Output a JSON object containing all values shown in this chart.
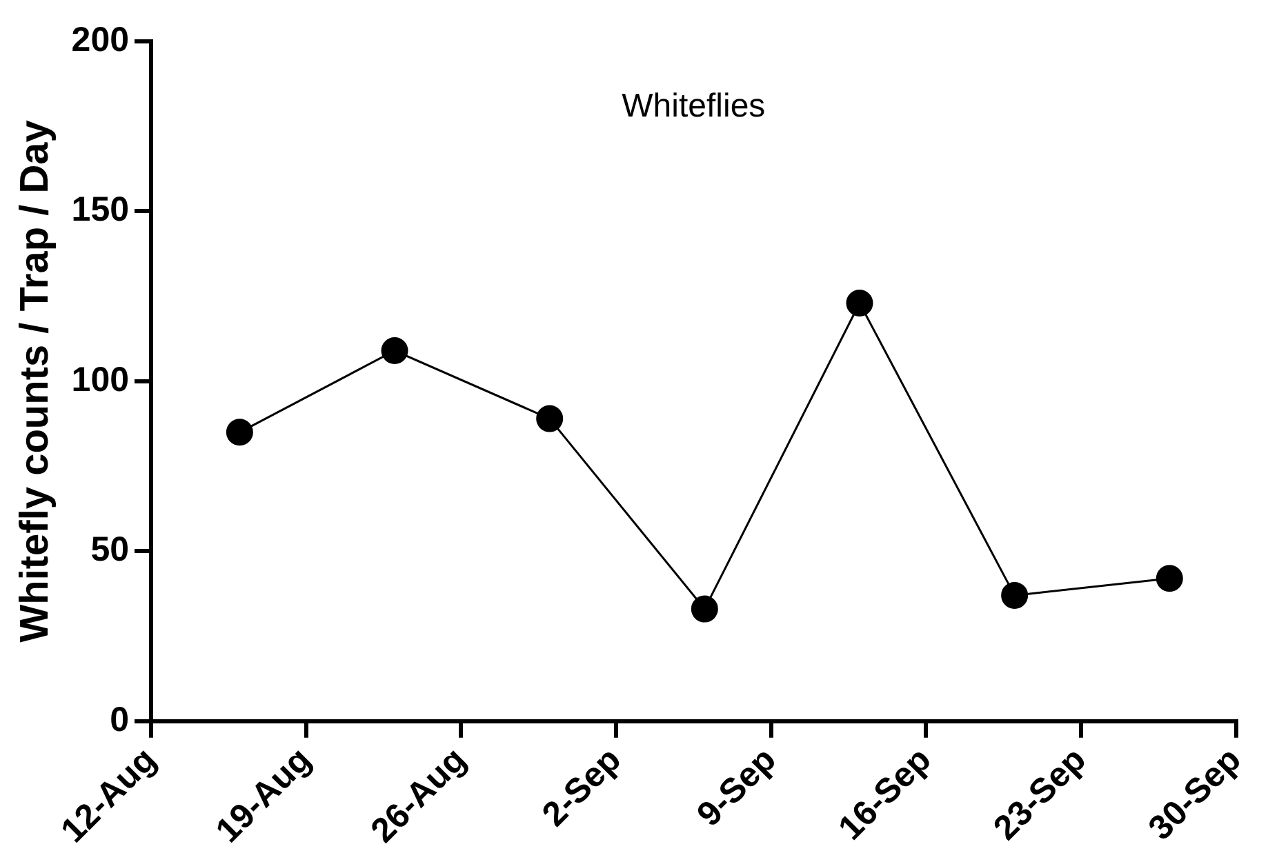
{
  "chart_data": {
    "type": "line",
    "title": "Whiteflies",
    "ylabel": "Whitefly counts / Trap / Day",
    "x": [
      "--08-16",
      "--08-23",
      "--08-30",
      "--09-06",
      "--09-13",
      "--09-20",
      "--09-27"
    ],
    "series": [
      {
        "color": "#000000",
        "values": [
          85,
          109,
          89,
          33,
          123,
          37,
          42
        ]
      }
    ],
    "xlim": [
      "--08-12",
      "--09-30"
    ],
    "xticks": [
      {
        "value": "--08-12",
        "label": "12-Aug"
      },
      {
        "value": "--08-19",
        "label": "19-Aug"
      },
      {
        "value": "--08-26",
        "label": "26-Aug"
      },
      {
        "value": "--09-02",
        "label": "2-Sep"
      },
      {
        "value": "--09-09",
        "label": "9-Sep"
      },
      {
        "value": "--09-16",
        "label": "16-Sep"
      },
      {
        "value": "--09-23",
        "label": "23-Sep"
      },
      {
        "value": "--09-30",
        "label": "30-Sep"
      }
    ],
    "ylim": [
      0,
      200
    ],
    "yticks": [
      0,
      50,
      100,
      150,
      200
    ],
    "grid": false,
    "legend": false,
    "marker": "circle",
    "line_style": "solid"
  }
}
